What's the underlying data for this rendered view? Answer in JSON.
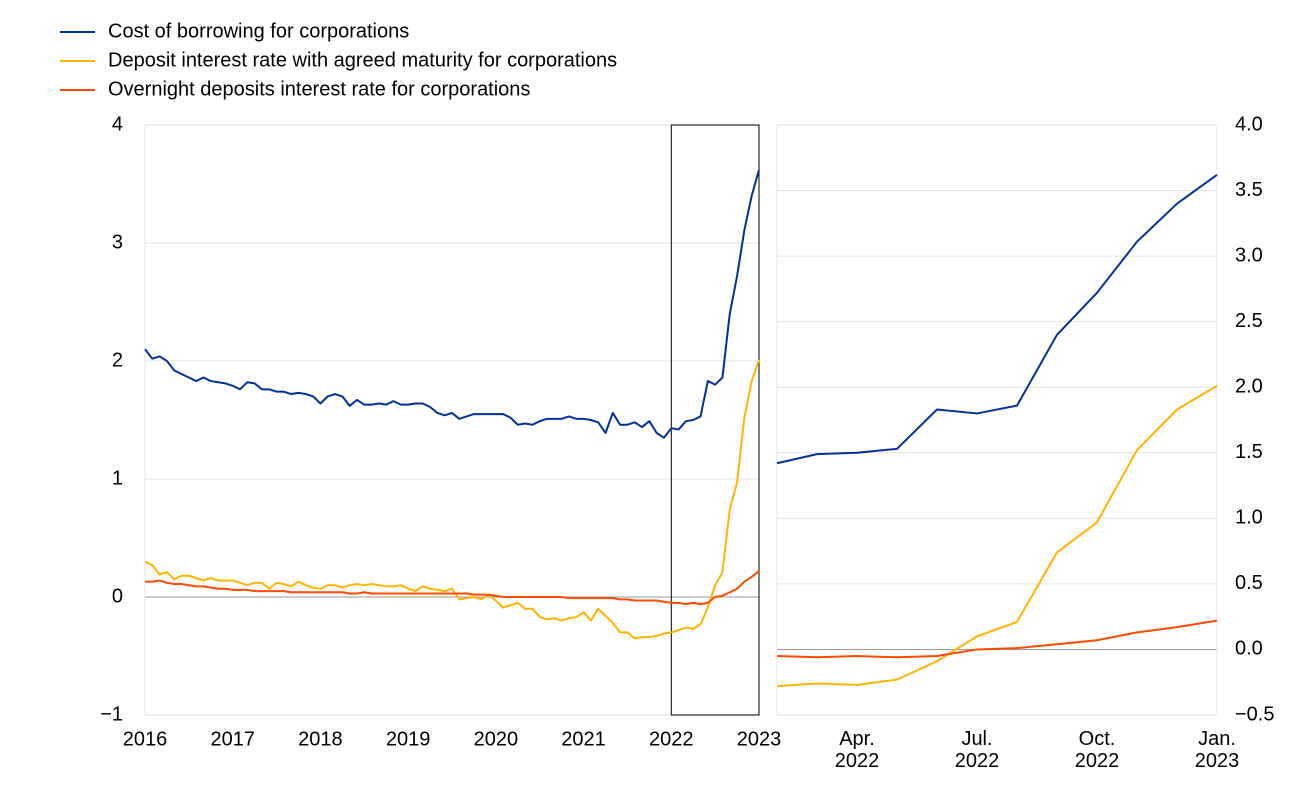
{
  "chart_data": [
    {
      "type": "line",
      "xlim": [
        2016,
        2023
      ],
      "xticks": [
        2016,
        2017,
        2018,
        2019,
        2020,
        2021,
        2022,
        2023
      ],
      "ylim": [
        -1,
        4
      ],
      "yticks": [
        {
          "value": -1,
          "label": "−1"
        },
        0,
        1,
        2,
        3,
        4
      ],
      "grid": true,
      "highlight_x": [
        2022,
        2023
      ],
      "series": [
        {
          "name": "Cost of borrowing for corporations",
          "color": "#003299",
          "values": [
            2.1,
            2.02,
            2.04,
            2.0,
            1.92,
            1.89,
            1.86,
            1.83,
            1.86,
            1.83,
            1.82,
            1.81,
            1.79,
            1.76,
            1.82,
            1.81,
            1.76,
            1.76,
            1.74,
            1.74,
            1.72,
            1.73,
            1.72,
            1.7,
            1.64,
            1.7,
            1.72,
            1.7,
            1.62,
            1.67,
            1.63,
            1.63,
            1.64,
            1.63,
            1.66,
            1.63,
            1.63,
            1.64,
            1.64,
            1.61,
            1.56,
            1.54,
            1.56,
            1.51,
            1.53,
            1.55,
            1.55,
            1.55,
            1.55,
            1.55,
            1.52,
            1.46,
            1.47,
            1.46,
            1.49,
            1.51,
            1.51,
            1.51,
            1.53,
            1.51,
            1.51,
            1.5,
            1.48,
            1.39,
            1.56,
            1.46,
            1.46,
            1.48,
            1.44,
            1.49,
            1.39,
            1.35,
            1.43,
            1.42,
            1.49,
            1.5,
            1.53,
            1.83,
            1.8,
            1.86,
            2.4,
            2.72,
            3.11,
            3.4,
            3.62
          ]
        },
        {
          "name": "Deposit interest rate with agreed maturity for corporations",
          "color": "#ffb400",
          "values": [
            0.3,
            0.27,
            0.19,
            0.21,
            0.15,
            0.18,
            0.18,
            0.16,
            0.14,
            0.16,
            0.14,
            0.14,
            0.14,
            0.12,
            0.1,
            0.12,
            0.12,
            0.07,
            0.12,
            0.11,
            0.09,
            0.13,
            0.1,
            0.08,
            0.07,
            0.1,
            0.1,
            0.08,
            0.1,
            0.11,
            0.1,
            0.11,
            0.1,
            0.09,
            0.09,
            0.1,
            0.07,
            0.05,
            0.09,
            0.07,
            0.06,
            0.05,
            0.07,
            -0.02,
            -0.01,
            0.0,
            -0.02,
            0.02,
            -0.03,
            -0.09,
            -0.07,
            -0.05,
            -0.1,
            -0.1,
            -0.17,
            -0.19,
            -0.18,
            -0.2,
            -0.18,
            -0.17,
            -0.13,
            -0.2,
            -0.1,
            -0.16,
            -0.22,
            -0.3,
            -0.3,
            -0.35,
            -0.34,
            -0.34,
            -0.33,
            -0.31,
            -0.3,
            -0.28,
            -0.26,
            -0.27,
            -0.23,
            -0.09,
            0.1,
            0.21,
            0.74,
            0.97,
            1.52,
            1.83,
            2.01
          ]
        },
        {
          "name": "Overnight deposits interest rate for corporations",
          "color": "#ff4b00",
          "values": [
            0.13,
            0.13,
            0.14,
            0.12,
            0.11,
            0.11,
            0.1,
            0.09,
            0.09,
            0.08,
            0.07,
            0.07,
            0.06,
            0.06,
            0.06,
            0.05,
            0.05,
            0.05,
            0.05,
            0.05,
            0.04,
            0.04,
            0.04,
            0.04,
            0.04,
            0.04,
            0.04,
            0.04,
            0.03,
            0.03,
            0.04,
            0.03,
            0.03,
            0.03,
            0.03,
            0.03,
            0.03,
            0.03,
            0.03,
            0.03,
            0.03,
            0.03,
            0.03,
            0.03,
            0.03,
            0.02,
            0.02,
            0.02,
            0.01,
            0.0,
            0.0,
            0.0,
            0.0,
            0.0,
            0.0,
            0.0,
            0.0,
            0.0,
            -0.01,
            -0.01,
            -0.01,
            -0.01,
            -0.01,
            -0.01,
            -0.01,
            -0.02,
            -0.02,
            -0.03,
            -0.03,
            -0.03,
            -0.03,
            -0.04,
            -0.05,
            -0.05,
            -0.06,
            -0.05,
            -0.06,
            -0.05,
            0.0,
            0.01,
            0.04,
            0.07,
            0.13,
            0.17,
            0.22
          ]
        }
      ]
    },
    {
      "type": "line",
      "categories": [
        null,
        null,
        "Apr.\n2022",
        null,
        null,
        "Jul.\n2022",
        null,
        null,
        "Oct.\n2022",
        null,
        null,
        "Jan.\n2023"
      ],
      "ylim": [
        -0.5,
        4
      ],
      "yticks": [
        {
          "value": -0.5,
          "label": "−0.5"
        },
        {
          "value": 0,
          "label": "0.0"
        },
        0.5,
        {
          "value": 1,
          "label": "1.0"
        },
        1.5,
        {
          "value": 2,
          "label": "2.0"
        },
        2.5,
        {
          "value": 3,
          "label": "3.0"
        },
        3.5,
        {
          "value": 4,
          "label": "4.0"
        }
      ],
      "grid": true,
      "series": [
        {
          "color": "#003299",
          "values": [
            1.42,
            1.49,
            1.5,
            1.53,
            1.83,
            1.8,
            1.86,
            2.4,
            2.72,
            3.11,
            3.4,
            3.62
          ]
        },
        {
          "color": "#ffb400",
          "values": [
            -0.28,
            -0.26,
            -0.27,
            -0.23,
            -0.09,
            0.1,
            0.21,
            0.74,
            0.97,
            1.52,
            1.83,
            2.01
          ]
        },
        {
          "color": "#ff4b00",
          "values": [
            -0.05,
            -0.06,
            -0.05,
            -0.06,
            -0.05,
            0.0,
            0.01,
            0.04,
            0.07,
            0.13,
            0.17,
            0.22
          ]
        }
      ]
    }
  ]
}
